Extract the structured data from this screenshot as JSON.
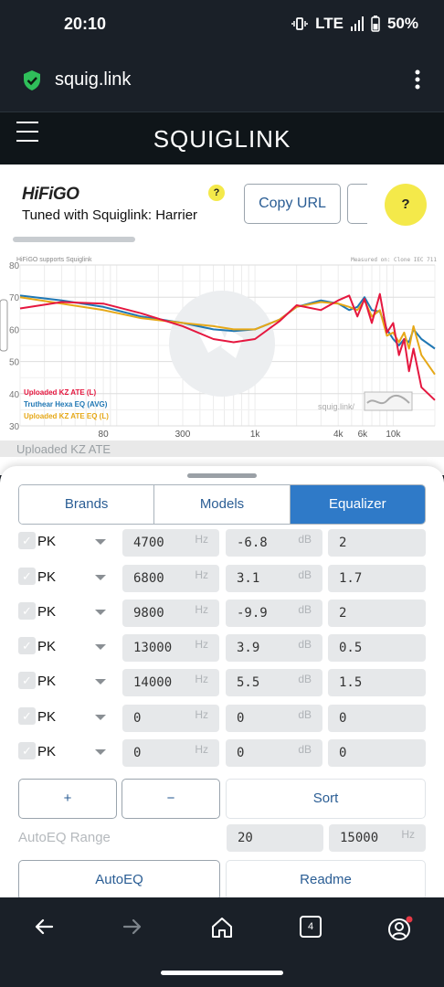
{
  "status": {
    "time": "20:10",
    "network": "LTE",
    "battery": "50%"
  },
  "browser": {
    "url": "squig.link",
    "tab_count": "4"
  },
  "app": {
    "title": "SQUIGLINK"
  },
  "header": {
    "logo": "HiFiGO",
    "tuned_text": "Tuned with Squiglink: Harrier",
    "help_small": "?",
    "copy_url_label": "Copy URL",
    "help_big": "?"
  },
  "graph": {
    "watermark_left": "HiFiGO supports Squiglink",
    "watermark_right": "Measured on: Clone IEC 711",
    "watermark_center": "squig.link/",
    "behind_text": "Uploaded KZ ATE"
  },
  "chart_data": {
    "type": "line",
    "x_scale": "log",
    "xlim": [
      20,
      20000
    ],
    "ylim": [
      30,
      80
    ],
    "x_ticks": [
      "80",
      "300",
      "1k",
      "4k",
      "6k",
      "10k"
    ],
    "y_ticks": [
      "80",
      "70",
      "60",
      "50",
      "40",
      "30"
    ],
    "grid": true,
    "legend_position": "bottom-left",
    "series": [
      {
        "name": "Uploaded KZ ATE (L)",
        "color": "#e5173f",
        "x": [
          20,
          40,
          80,
          150,
          300,
          500,
          700,
          1000,
          1500,
          2000,
          3000,
          4000,
          4800,
          5500,
          6200,
          7000,
          8000,
          9000,
          10000,
          11000,
          12000,
          13000,
          14000,
          16000,
          20000
        ],
        "y": [
          66.5,
          68.5,
          68.0,
          65.0,
          61.0,
          57.0,
          56.0,
          57.0,
          62.5,
          67.5,
          66.0,
          69.0,
          70.5,
          64.0,
          69.5,
          62.0,
          71.0,
          59.0,
          62.0,
          52.0,
          57.0,
          47.0,
          54.0,
          42.0,
          38.0
        ]
      },
      {
        "name": "Truthear Hexa EQ (AVG)",
        "color": "#1f77b4",
        "x": [
          20,
          40,
          80,
          150,
          300,
          500,
          700,
          1000,
          1500,
          2000,
          3000,
          4000,
          4800,
          5500,
          6200,
          7000,
          8000,
          9000,
          10000,
          11000,
          12000,
          13000,
          14000,
          16000,
          20000
        ],
        "y": [
          70.5,
          69.0,
          67.0,
          64.0,
          62.0,
          60.0,
          59.5,
          60.0,
          63.0,
          67.0,
          69.0,
          68.0,
          66.0,
          67.0,
          70.0,
          66.0,
          65.5,
          60.0,
          57.0,
          55.0,
          57.0,
          56.0,
          60.0,
          57.0,
          54.0
        ]
      },
      {
        "name": "Uploaded KZ ATE EQ (L)",
        "color": "#e6a817",
        "x": [
          20,
          40,
          80,
          150,
          300,
          500,
          700,
          1000,
          1500,
          2000,
          3000,
          4000,
          4800,
          5500,
          6200,
          7000,
          8000,
          9000,
          10000,
          11000,
          12000,
          13000,
          14000,
          16000,
          20000
        ],
        "y": [
          70.0,
          68.0,
          66.0,
          63.5,
          62.0,
          61.0,
          60.0,
          60.0,
          63.0,
          67.0,
          68.5,
          68.0,
          67.0,
          66.0,
          69.0,
          64.0,
          66.0,
          58.0,
          59.0,
          56.0,
          59.0,
          54.0,
          61.0,
          52.0,
          46.0
        ]
      }
    ]
  },
  "tabs": [
    {
      "label": "Brands",
      "active": false
    },
    {
      "label": "Models",
      "active": false
    },
    {
      "label": "Equalizer",
      "active": true
    }
  ],
  "eq_units": {
    "freq": "Hz",
    "gain": "dB"
  },
  "eq_rows": [
    {
      "type": "PK",
      "freq": "4700",
      "gain": "-6.8",
      "q": "2"
    },
    {
      "type": "PK",
      "freq": "6800",
      "gain": "3.1",
      "q": "1.7"
    },
    {
      "type": "PK",
      "freq": "9800",
      "gain": "-9.9",
      "q": "2"
    },
    {
      "type": "PK",
      "freq": "13000",
      "gain": "3.9",
      "q": "0.5"
    },
    {
      "type": "PK",
      "freq": "14000",
      "gain": "5.5",
      "q": "1.5"
    },
    {
      "type": "PK",
      "freq": "0",
      "gain": "0",
      "q": "0"
    },
    {
      "type": "PK",
      "freq": "0",
      "gain": "0",
      "q": "0"
    }
  ],
  "controls": {
    "add": "+",
    "remove": "−",
    "sort": "Sort",
    "autoeq_range_label": "AutoEQ Range",
    "range_min": "20",
    "range_max": "15000",
    "autoeq": "AutoEQ",
    "readme": "Readme"
  }
}
